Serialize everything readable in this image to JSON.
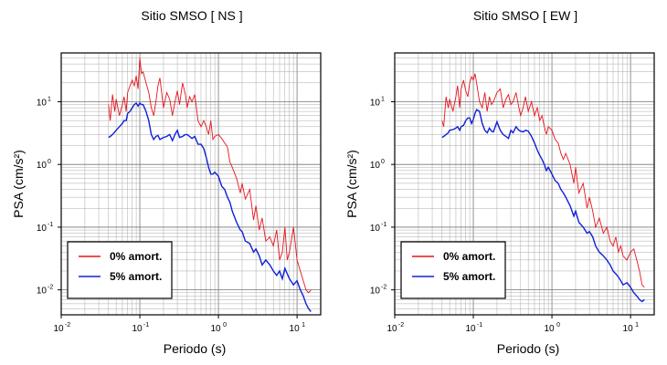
{
  "chart_data": [
    {
      "type": "line",
      "title": "Sitio SMSO [ NS ]",
      "xlabel": "Periodo (s)",
      "ylabel": "PSA (cm/s²)",
      "x_scale": "log",
      "y_scale": "log",
      "xlim": [
        0.01,
        20
      ],
      "ylim": [
        0.004,
        60
      ],
      "grid": true,
      "legend": "bottom-left",
      "x_ticks": [
        {
          "base": "10",
          "exp": "-2"
        },
        {
          "base": "10",
          "exp": "-1"
        },
        {
          "base": "10",
          "exp": "0"
        },
        {
          "base": "10",
          "exp": "1"
        }
      ],
      "y_ticks": [
        {
          "base": "10",
          "exp": "-2"
        },
        {
          "base": "10",
          "exp": "-1"
        },
        {
          "base": "10",
          "exp": "0"
        },
        {
          "base": "10",
          "exp": "1"
        }
      ],
      "series": [
        {
          "name": "0% amort.",
          "color": "#e8141c",
          "x": [
            0.04,
            0.042,
            0.045,
            0.048,
            0.05,
            0.055,
            0.06,
            0.063,
            0.067,
            0.07,
            0.075,
            0.08,
            0.085,
            0.09,
            0.095,
            0.1,
            0.105,
            0.11,
            0.12,
            0.13,
            0.14,
            0.15,
            0.16,
            0.17,
            0.18,
            0.2,
            0.22,
            0.24,
            0.26,
            0.28,
            0.3,
            0.32,
            0.35,
            0.38,
            0.4,
            0.43,
            0.46,
            0.5,
            0.55,
            0.6,
            0.65,
            0.7,
            0.75,
            0.8,
            0.85,
            0.9,
            1.0,
            1.1,
            1.2,
            1.3,
            1.4,
            1.5,
            1.7,
            1.9,
            2.0,
            2.2,
            2.5,
            2.8,
            3.0,
            3.3,
            3.6,
            4.0,
            4.5,
            5.0,
            5.5,
            6.0,
            6.5,
            7.0,
            7.5,
            8.0,
            9.0,
            10.0,
            11.0,
            12.0,
            13.0,
            14.0,
            15.0
          ],
          "y": [
            9,
            5,
            13,
            7,
            11,
            6,
            9,
            12,
            7,
            14,
            18,
            22,
            18,
            26,
            16,
            50,
            28,
            30,
            20,
            14,
            8,
            6,
            10,
            18,
            24,
            8,
            14,
            11,
            6,
            10,
            15,
            9,
            20,
            13,
            8,
            12,
            10,
            13,
            5,
            4,
            5,
            4,
            3,
            5,
            2.5,
            2.8,
            3,
            2.6,
            2.2,
            1.9,
            1.1,
            0.9,
            0.6,
            0.35,
            0.5,
            0.28,
            0.4,
            0.13,
            0.22,
            0.09,
            0.14,
            0.06,
            0.07,
            0.05,
            0.09,
            0.03,
            0.04,
            0.1,
            0.03,
            0.04,
            0.1,
            0.03,
            0.02,
            0.014,
            0.01,
            0.009,
            0.01
          ]
        },
        {
          "name": "5% amort.",
          "color": "#1020d8",
          "x": [
            0.04,
            0.042,
            0.045,
            0.048,
            0.05,
            0.055,
            0.06,
            0.063,
            0.067,
            0.07,
            0.075,
            0.08,
            0.085,
            0.09,
            0.095,
            0.1,
            0.105,
            0.11,
            0.12,
            0.13,
            0.14,
            0.15,
            0.16,
            0.17,
            0.18,
            0.2,
            0.22,
            0.24,
            0.26,
            0.28,
            0.3,
            0.32,
            0.35,
            0.38,
            0.4,
            0.43,
            0.46,
            0.5,
            0.55,
            0.6,
            0.65,
            0.7,
            0.75,
            0.8,
            0.85,
            0.9,
            1.0,
            1.1,
            1.2,
            1.3,
            1.4,
            1.5,
            1.7,
            1.9,
            2.0,
            2.2,
            2.5,
            2.8,
            3.0,
            3.3,
            3.6,
            4.0,
            4.5,
            5.0,
            5.5,
            6.0,
            6.5,
            7.0,
            7.5,
            8.0,
            9.0,
            10.0,
            11.0,
            12.0,
            13.0,
            14.0,
            15.0
          ],
          "y": [
            2.7,
            2.8,
            3,
            3.3,
            3.5,
            4,
            4.5,
            5,
            5,
            6.5,
            7,
            8,
            9,
            9.5,
            8.5,
            9.5,
            9,
            9,
            7,
            5,
            3,
            2.5,
            2.8,
            2.9,
            2.5,
            2.7,
            2.8,
            3,
            2.4,
            3,
            3.5,
            2.7,
            2.8,
            3,
            3,
            2.8,
            2.6,
            2.8,
            2.1,
            2.1,
            1.8,
            1.3,
            0.9,
            0.7,
            0.7,
            0.75,
            0.65,
            0.45,
            0.4,
            0.3,
            0.25,
            0.18,
            0.12,
            0.09,
            0.085,
            0.06,
            0.055,
            0.04,
            0.045,
            0.035,
            0.025,
            0.03,
            0.025,
            0.02,
            0.017,
            0.02,
            0.015,
            0.022,
            0.018,
            0.015,
            0.012,
            0.014,
            0.01,
            0.008,
            0.006,
            0.005,
            0.0045
          ]
        }
      ]
    },
    {
      "type": "line",
      "title": "Sitio SMSO [ EW ]",
      "xlabel": "Periodo (s)",
      "ylabel": "PSA (cm/s²)",
      "x_scale": "log",
      "y_scale": "log",
      "xlim": [
        0.01,
        20
      ],
      "ylim": [
        0.004,
        60
      ],
      "grid": true,
      "legend": "bottom-left",
      "x_ticks": [
        {
          "base": "10",
          "exp": "-2"
        },
        {
          "base": "10",
          "exp": "-1"
        },
        {
          "base": "10",
          "exp": "0"
        },
        {
          "base": "10",
          "exp": "1"
        }
      ],
      "y_ticks": [
        {
          "base": "10",
          "exp": "-2"
        },
        {
          "base": "10",
          "exp": "-1"
        },
        {
          "base": "10",
          "exp": "0"
        },
        {
          "base": "10",
          "exp": "1"
        }
      ],
      "series": [
        {
          "name": "0% amort.",
          "color": "#e8141c",
          "x": [
            0.04,
            0.042,
            0.045,
            0.048,
            0.05,
            0.055,
            0.06,
            0.063,
            0.067,
            0.07,
            0.075,
            0.08,
            0.085,
            0.09,
            0.095,
            0.1,
            0.105,
            0.11,
            0.12,
            0.13,
            0.14,
            0.15,
            0.16,
            0.17,
            0.18,
            0.2,
            0.22,
            0.24,
            0.26,
            0.28,
            0.3,
            0.32,
            0.35,
            0.38,
            0.4,
            0.43,
            0.46,
            0.5,
            0.55,
            0.6,
            0.65,
            0.7,
            0.75,
            0.8,
            0.85,
            0.9,
            1.0,
            1.1,
            1.2,
            1.3,
            1.4,
            1.5,
            1.7,
            1.9,
            2.0,
            2.2,
            2.5,
            2.8,
            3.0,
            3.3,
            3.6,
            4.0,
            4.5,
            5.0,
            5.5,
            6.0,
            6.5,
            7.0,
            7.5,
            8.0,
            9.0,
            10.0,
            11.0,
            12.0,
            13.0,
            14.0,
            15.0
          ],
          "y": [
            5,
            4,
            12,
            8,
            11,
            7,
            12,
            18,
            8,
            16,
            22,
            15,
            12,
            20,
            25,
            22,
            28,
            20,
            10,
            8,
            14,
            7,
            12,
            9,
            10,
            14,
            16,
            8,
            11,
            13,
            9,
            10,
            14,
            8,
            6,
            8,
            12,
            7,
            10,
            6,
            8,
            5,
            6,
            4,
            3,
            4,
            3.5,
            2.5,
            2.2,
            1.5,
            1.2,
            1.5,
            1,
            0.5,
            0.9,
            0.35,
            0.5,
            0.2,
            0.3,
            0.18,
            0.1,
            0.14,
            0.08,
            0.1,
            0.06,
            0.05,
            0.07,
            0.04,
            0.05,
            0.035,
            0.03,
            0.04,
            0.045,
            0.03,
            0.02,
            0.012,
            0.011
          ]
        },
        {
          "name": "5% amort.",
          "color": "#1020d8",
          "x": [
            0.04,
            0.042,
            0.045,
            0.048,
            0.05,
            0.055,
            0.06,
            0.063,
            0.067,
            0.07,
            0.075,
            0.08,
            0.085,
            0.09,
            0.095,
            0.1,
            0.105,
            0.11,
            0.12,
            0.13,
            0.14,
            0.15,
            0.16,
            0.17,
            0.18,
            0.2,
            0.22,
            0.24,
            0.26,
            0.28,
            0.3,
            0.32,
            0.35,
            0.38,
            0.4,
            0.43,
            0.46,
            0.5,
            0.55,
            0.6,
            0.65,
            0.7,
            0.75,
            0.8,
            0.85,
            0.9,
            1.0,
            1.1,
            1.2,
            1.3,
            1.4,
            1.5,
            1.7,
            1.9,
            2.0,
            2.2,
            2.5,
            2.8,
            3.0,
            3.3,
            3.6,
            4.0,
            4.5,
            5.0,
            5.5,
            6.0,
            6.5,
            7.0,
            7.5,
            8.0,
            9.0,
            10.0,
            11.0,
            12.0,
            13.0,
            14.0,
            15.0
          ],
          "y": [
            2.7,
            2.8,
            3,
            3.2,
            3.5,
            3.6,
            3.8,
            4,
            3.5,
            4,
            4.2,
            5,
            5.5,
            5.5,
            4.5,
            5.2,
            6.5,
            7.5,
            7,
            4.5,
            3.5,
            3.2,
            3.8,
            3.4,
            3.3,
            4.8,
            3.5,
            3,
            2.8,
            2.6,
            3.5,
            3.2,
            4,
            3.5,
            3.4,
            3.3,
            3.5,
            3.4,
            2.8,
            2.2,
            1.7,
            1.4,
            1.2,
            1,
            0.8,
            0.9,
            0.7,
            0.55,
            0.5,
            0.4,
            0.35,
            0.3,
            0.22,
            0.15,
            0.18,
            0.12,
            0.1,
            0.08,
            0.085,
            0.07,
            0.05,
            0.04,
            0.035,
            0.03,
            0.025,
            0.02,
            0.018,
            0.016,
            0.014,
            0.012,
            0.013,
            0.011,
            0.009,
            0.008,
            0.007,
            0.0065,
            0.007
          ]
        }
      ]
    }
  ]
}
